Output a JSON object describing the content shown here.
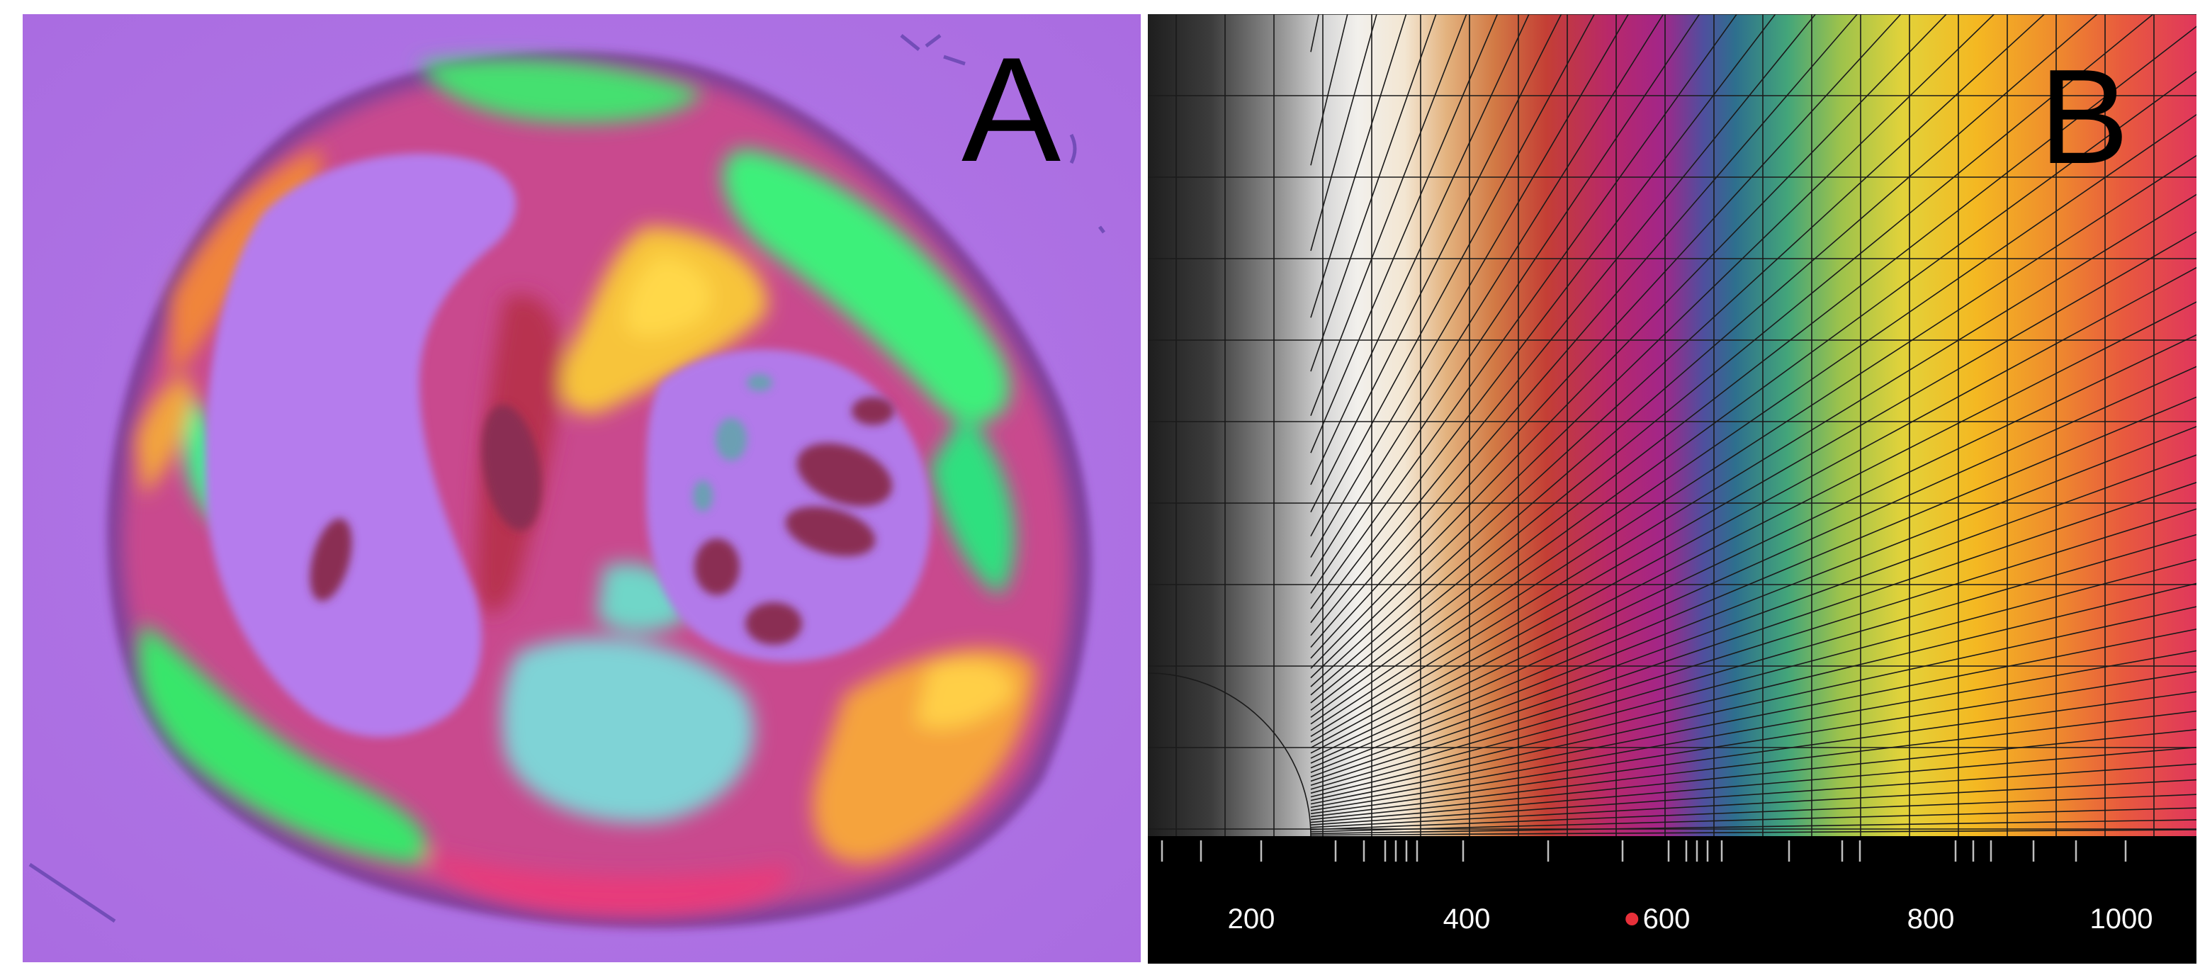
{
  "panels": {
    "a": {
      "label": "A",
      "subject": "heart-cross-section",
      "background_color": "#b074e6"
    },
    "b": {
      "label": "B",
      "axis": {
        "tick_labels": [
          "200",
          "400",
          "600",
          "800",
          "1000"
        ],
        "marker_value": 550,
        "marker_color": "#e8303a"
      }
    }
  }
}
